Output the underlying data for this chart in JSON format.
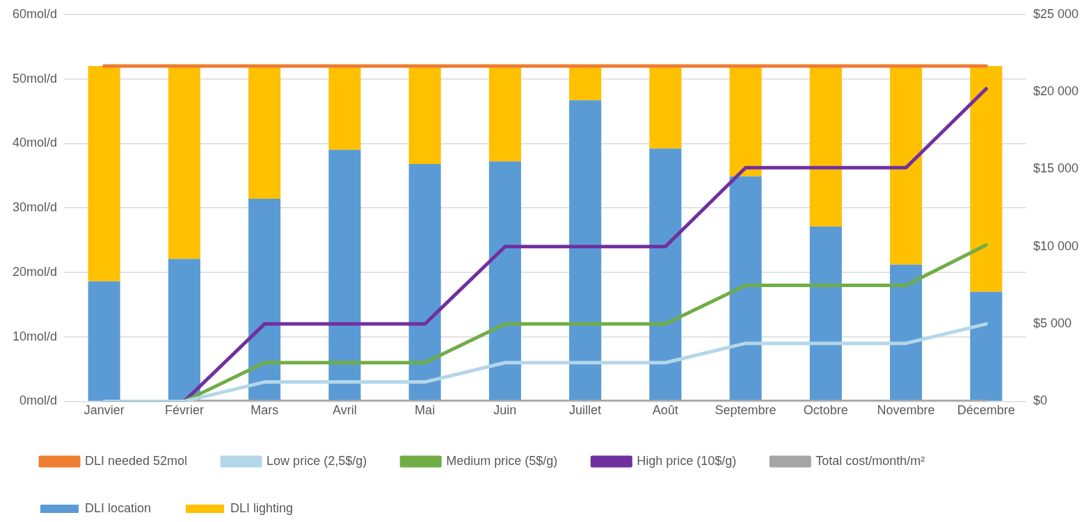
{
  "chart_data": {
    "type": "bar",
    "stacked": true,
    "categories": [
      "Janvier",
      "Février",
      "Mars",
      "Avril",
      "Mai",
      "Juin",
      "Juillet",
      "Août",
      "Septembre",
      "Octobre",
      "Novembre",
      "Décembre"
    ],
    "series": [
      {
        "name": "DLI location",
        "color": "#5b9bd5",
        "values": [
          18.6,
          22.1,
          31.4,
          39.0,
          36.8,
          37.2,
          46.7,
          39.2,
          34.9,
          27.1,
          21.2,
          17.0
        ]
      },
      {
        "name": "DLI lighting",
        "color": "#ffc000",
        "values": [
          33.4,
          29.9,
          20.6,
          13.0,
          15.2,
          14.8,
          5.3,
          12.8,
          17.1,
          24.9,
          30.8,
          35.0
        ]
      },
      {
        "name": "DLI needed 52mol",
        "type": "line",
        "color": "#ed7d31",
        "values": [
          52,
          52,
          52,
          52,
          52,
          52,
          52,
          52,
          52,
          52,
          52,
          52
        ]
      },
      {
        "name": "Low price (2,5$/g)",
        "type": "line",
        "axis": "y2",
        "color": "#b4d7e8",
        "values": [
          0,
          0,
          1250,
          1250,
          1250,
          2500,
          2500,
          2500,
          3750,
          3750,
          3750,
          5000
        ]
      },
      {
        "name": "Medium price (5$/g)",
        "type": "line",
        "axis": "y2",
        "color": "#70ad47",
        "values": [
          0,
          0,
          2500,
          2500,
          2500,
          5000,
          5000,
          5000,
          7500,
          7500,
          7500,
          10100
        ]
      },
      {
        "name": "High price (10$/g)",
        "type": "line",
        "axis": "y2",
        "color": "#7030a0",
        "values": [
          0,
          0,
          5000,
          5000,
          5000,
          10000,
          10000,
          10000,
          15100,
          15100,
          15100,
          20200
        ]
      },
      {
        "name": "Total cost/month/m²",
        "type": "line",
        "axis": "y2",
        "color": "#a5a5a5",
        "values": [
          0,
          0,
          0,
          0,
          0,
          0,
          0,
          0,
          0,
          0,
          0,
          0
        ]
      }
    ],
    "ylim": [
      0,
      60
    ],
    "yticks": [
      {
        "value": 0,
        "label": "0mol/d"
      },
      {
        "value": 10,
        "label": "10mol/d"
      },
      {
        "value": 20,
        "label": "20mol/d"
      },
      {
        "value": 30,
        "label": "30mol/d"
      },
      {
        "value": 40,
        "label": "40mol/d"
      },
      {
        "value": 50,
        "label": "50mol/d"
      },
      {
        "value": 60,
        "label": "60mol/d"
      }
    ],
    "y2lim": [
      0,
      25000
    ],
    "y2ticks": [
      {
        "value": 0,
        "label": "$0"
      },
      {
        "value": 5000,
        "label": "$5 000"
      },
      {
        "value": 10000,
        "label": "$10 000"
      },
      {
        "value": 15000,
        "label": "$15 000"
      },
      {
        "value": 20000,
        "label": "$20 000"
      },
      {
        "value": 25000,
        "label": "$25 000"
      }
    ],
    "grid": "y",
    "legend": "bottom",
    "marker": "none",
    "line_style": "solid"
  }
}
